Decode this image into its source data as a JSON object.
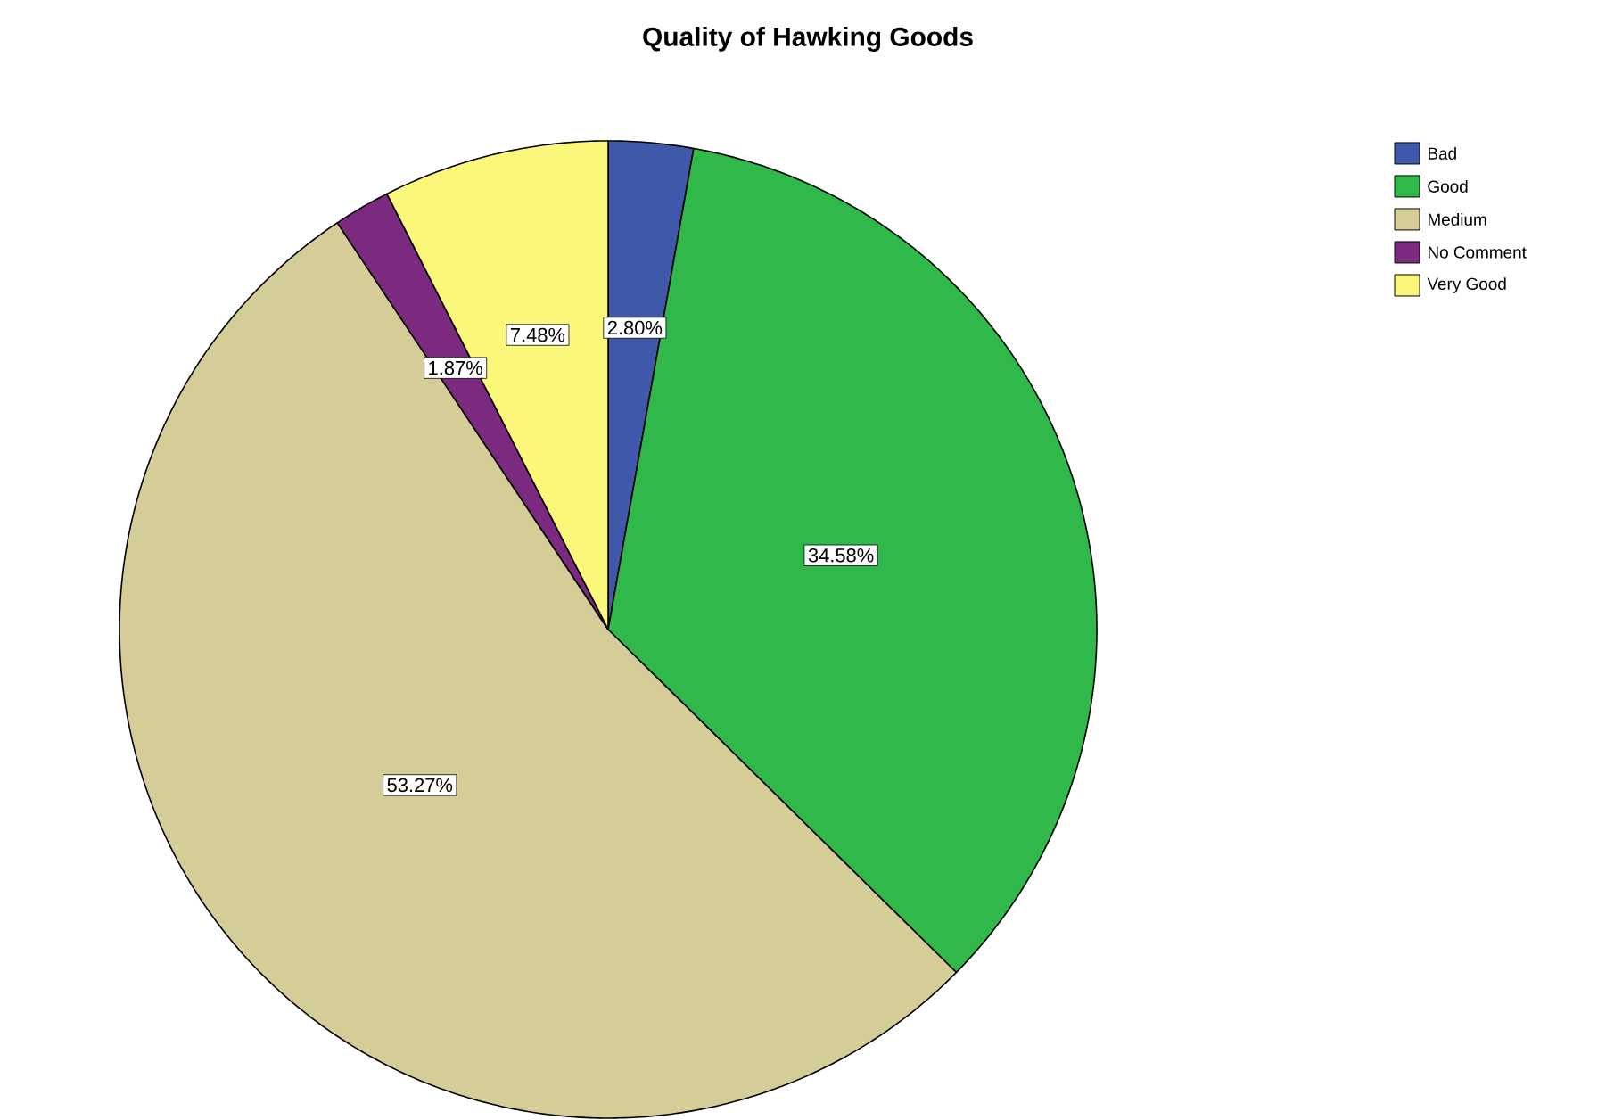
{
  "chart_data": {
    "type": "pie",
    "title": "Quality of Hawking Goods",
    "categories": [
      "Bad",
      "Good",
      "Medium",
      "No Comment",
      "Very Good"
    ],
    "values": [
      2.8,
      34.58,
      53.27,
      1.87,
      7.48
    ],
    "value_labels": [
      "2.80%",
      "34.58%",
      "53.27%",
      "1.87%",
      "7.48%"
    ],
    "colors": [
      "#3f58aa",
      "#30b84a",
      "#d4cd98",
      "#7c2a7f",
      "#fbf77a"
    ],
    "legend": "top right"
  }
}
